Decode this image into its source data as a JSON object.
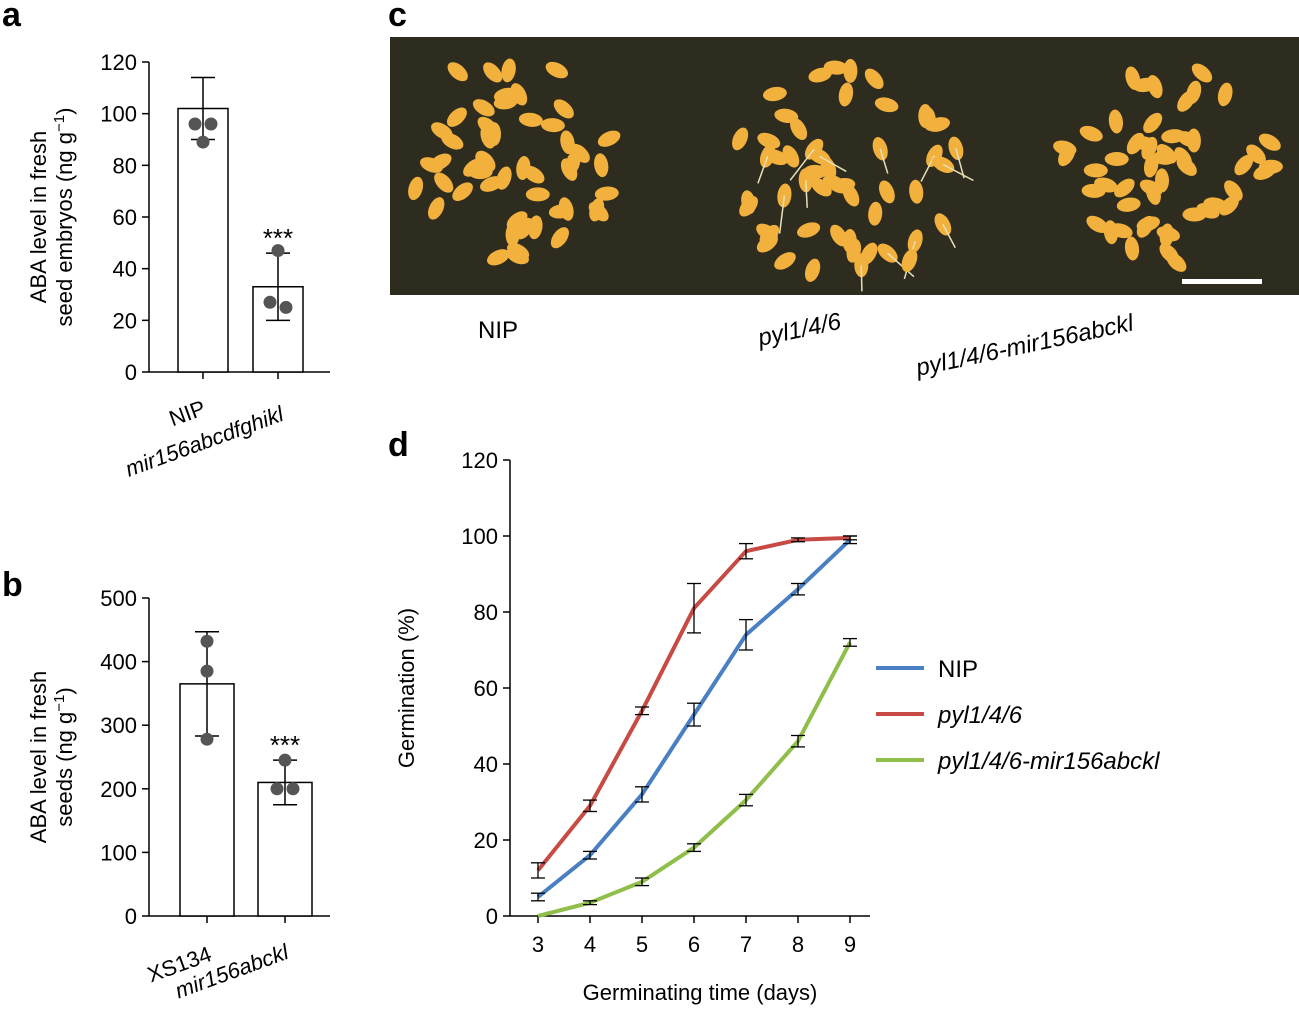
{
  "panels": {
    "a": {
      "letter": "a"
    },
    "b": {
      "letter": "b"
    },
    "c": {
      "letter": "c"
    },
    "d": {
      "letter": "d"
    }
  },
  "photo": {
    "labels": [
      "NIP",
      "pyl1/4/6",
      "pyl1/4/6-mir156abckl"
    ],
    "background_color": "#2e2c1f",
    "seed_color": "#f2b13c"
  },
  "colors": {
    "NIP": "#4a7fc3",
    "pyl146": "#c84a45",
    "pyl146_mir": "#8fbe4a",
    "dot": "#555555"
  },
  "chart_data": [
    {
      "id": "a",
      "type": "bar",
      "ylabel_line1": "ABA level in fresh",
      "ylabel_line2": "seed embryos (ng g",
      "ylabel_sup": "−1",
      "ylabel_close": ")",
      "ylim": [
        0,
        120
      ],
      "yticks": [
        0,
        20,
        40,
        60,
        80,
        100,
        120
      ],
      "categories": [
        "NIP",
        "mir156abcdfghikl"
      ],
      "category_italic": [
        false,
        true
      ],
      "values": [
        102,
        33
      ],
      "errors": [
        12,
        13
      ],
      "points": [
        [
          96,
          96,
          89
        ],
        [
          47,
          27,
          25
        ]
      ],
      "significance": [
        "",
        "***"
      ]
    },
    {
      "id": "b",
      "type": "bar",
      "ylabel_line1": "ABA level in fresh",
      "ylabel_line2": "seeds (ng g",
      "ylabel_sup": "−1",
      "ylabel_close": ")",
      "ylim": [
        0,
        500
      ],
      "yticks": [
        0,
        100,
        200,
        300,
        400,
        500
      ],
      "categories": [
        "XS134",
        "mir156abckl"
      ],
      "category_italic": [
        false,
        true
      ],
      "values": [
        365,
        210
      ],
      "errors": [
        82,
        35
      ],
      "points": [
        [
          432,
          385,
          278
        ],
        [
          245,
          200,
          200
        ]
      ],
      "significance": [
        "",
        "***"
      ]
    },
    {
      "id": "d",
      "type": "line",
      "xlabel": "Germinating time (days)",
      "ylabel": "Germination (%)",
      "x": [
        3,
        4,
        5,
        6,
        7,
        8,
        9
      ],
      "ylim": [
        0,
        120
      ],
      "yticks": [
        0,
        20,
        40,
        60,
        80,
        100,
        120
      ],
      "legend_position": "right",
      "series": [
        {
          "name": "NIP",
          "italic": false,
          "color_key": "NIP",
          "values": [
            5,
            16,
            32,
            53,
            74,
            86,
            99
          ],
          "errors": [
            1,
            1,
            2,
            3,
            4,
            1.5,
            1
          ]
        },
        {
          "name": "pyl1/4/6",
          "italic": true,
          "color_key": "pyl146",
          "values": [
            12,
            29,
            54,
            81,
            96,
            99,
            99.5
          ],
          "errors": [
            2,
            1.5,
            1,
            6.5,
            2,
            0.5,
            0.5
          ]
        },
        {
          "name": "pyl1/4/6-mir156abckl",
          "italic": true,
          "color_key": "pyl146_mir",
          "values": [
            0,
            3.5,
            9,
            18,
            30.5,
            46,
            72
          ],
          "errors": [
            0,
            0.5,
            1,
            1,
            1.5,
            1.5,
            1
          ]
        }
      ]
    }
  ]
}
